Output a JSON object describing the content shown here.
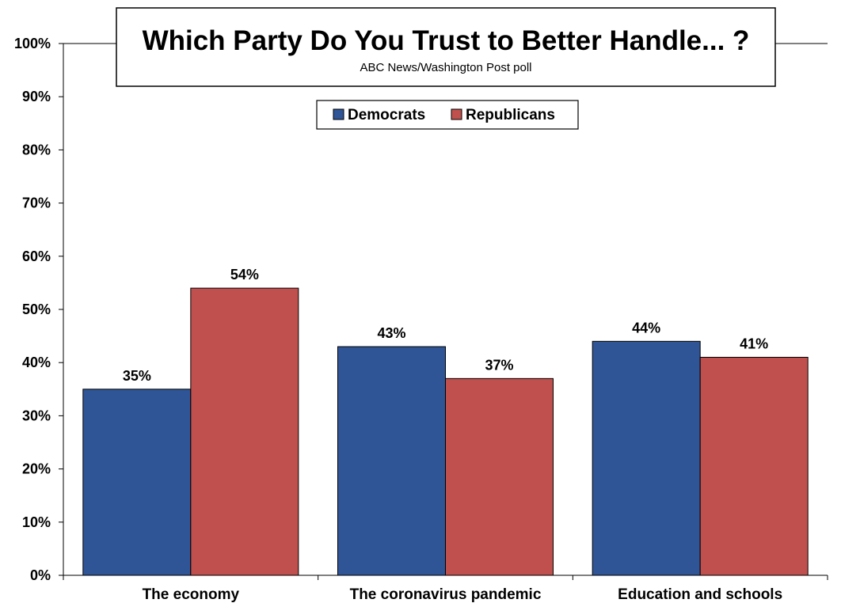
{
  "chart_data": {
    "type": "bar",
    "title": "Which Party Do You Trust to Better Handle... ?",
    "subtitle": "ABC News/Washington Post poll",
    "categories": [
      "The economy",
      "The coronavirus pandemic",
      "Education and schools"
    ],
    "series": [
      {
        "name": "Democrats",
        "values": [
          35,
          43,
          44
        ],
        "color": "#2f5597"
      },
      {
        "name": "Republicans",
        "values": [
          54,
          37,
          41
        ],
        "color": "#c0504d"
      }
    ],
    "data_labels": [
      [
        "35%",
        "43%",
        "44%"
      ],
      [
        "54%",
        "37%",
        "41%"
      ]
    ],
    "y_ticks": [
      "0%",
      "10%",
      "20%",
      "30%",
      "40%",
      "50%",
      "60%",
      "70%",
      "80%",
      "90%",
      "100%"
    ],
    "ylim": [
      0,
      100
    ],
    "xlabel": "",
    "ylabel": "",
    "grid": false,
    "legend_position": "top-center"
  }
}
